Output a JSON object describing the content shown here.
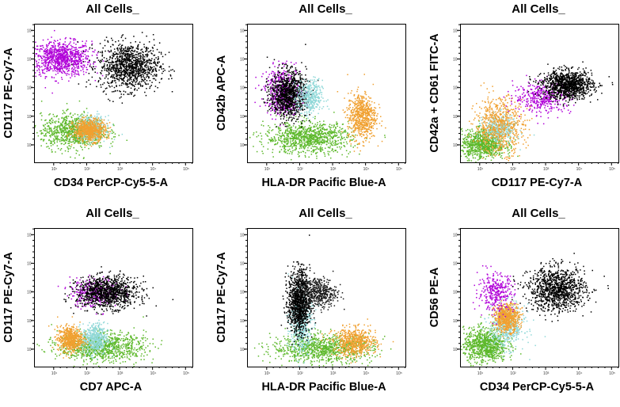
{
  "chart_data": [
    {
      "type": "scatter",
      "title": "All Cells_",
      "xlabel": "CD34 PerCP-Cy5-5-A",
      "ylabel": "CD117 PE-Cy7-A",
      "xscale": "log",
      "yscale": "log",
      "xlim": [
        10,
        100000
      ],
      "ylim": [
        10,
        100000
      ],
      "tick_labels": [
        "10¹",
        "10²",
        "10³",
        "10⁴",
        "10⁵"
      ],
      "series": [
        {
          "name": "magenta",
          "color": "#b000d8",
          "center_decades": [
            0.65,
            3.25
          ],
          "spread_decades": [
            0.85,
            0.55
          ],
          "density": 0.85
        },
        {
          "name": "black",
          "color": "#000000",
          "center_decades": [
            2.55,
            3.0
          ],
          "spread_decades": [
            0.85,
            0.75
          ],
          "density": 1.0
        },
        {
          "name": "green",
          "color": "#5cb82a",
          "center_decades": [
            1.0,
            0.9
          ],
          "spread_decades": [
            0.9,
            0.55
          ],
          "density": 0.8
        },
        {
          "name": "cyan",
          "color": "#8fd8d8",
          "center_decades": [
            1.5,
            1.0
          ],
          "spread_decades": [
            0.4,
            0.4
          ],
          "density": 0.35
        },
        {
          "name": "orange",
          "color": "#f0a030",
          "center_decades": [
            1.45,
            0.95
          ],
          "spread_decades": [
            0.45,
            0.35
          ],
          "density": 0.6
        }
      ]
    },
    {
      "type": "scatter",
      "title": "All Cells_",
      "xlabel": "HLA-DR Pacific Blue-A",
      "ylabel": "CD42b APC-A",
      "xscale": "log",
      "yscale": "log",
      "xlim": [
        10,
        100000
      ],
      "ylim": [
        10,
        100000
      ],
      "tick_labels": [
        "10¹",
        "10²",
        "10³",
        "10⁴",
        "10⁵"
      ],
      "series": [
        {
          "name": "green",
          "color": "#5cb82a",
          "center_decades": [
            1.6,
            0.7
          ],
          "spread_decades": [
            1.2,
            0.5
          ],
          "density": 0.9
        },
        {
          "name": "magenta",
          "color": "#b000d8",
          "center_decades": [
            0.9,
            2.2
          ],
          "spread_decades": [
            0.5,
            0.75
          ],
          "density": 0.45
        },
        {
          "name": "black",
          "color": "#000000",
          "center_decades": [
            1.05,
            2.1
          ],
          "spread_decades": [
            0.5,
            0.75
          ],
          "density": 0.95
        },
        {
          "name": "cyan",
          "color": "#8fd8d8",
          "center_decades": [
            1.65,
            2.0
          ],
          "spread_decades": [
            0.35,
            0.55
          ],
          "density": 0.35
        },
        {
          "name": "orange",
          "color": "#f0a030",
          "center_decades": [
            3.1,
            1.4
          ],
          "spread_decades": [
            0.4,
            0.75
          ],
          "density": 0.6
        }
      ]
    },
    {
      "type": "scatter",
      "title": "All Cells_",
      "xlabel": "CD117 PE-Cy7-A",
      "ylabel": "CD42a + CD61 FITC-A",
      "xscale": "log",
      "yscale": "log",
      "xlim": [
        10,
        100000
      ],
      "ylim": [
        10,
        100000
      ],
      "tick_labels": [
        "10¹",
        "10²",
        "10³",
        "10⁴",
        "10⁵"
      ],
      "series": [
        {
          "name": "green",
          "color": "#5cb82a",
          "center_decades": [
            0.55,
            0.5
          ],
          "spread_decades": [
            0.6,
            0.45
          ],
          "density": 0.75
        },
        {
          "name": "cyan",
          "color": "#8fd8d8",
          "center_decades": [
            1.0,
            1.0
          ],
          "spread_decades": [
            0.45,
            0.45
          ],
          "density": 0.35
        },
        {
          "name": "orange",
          "color": "#f0a030",
          "center_decades": [
            1.0,
            1.1
          ],
          "spread_decades": [
            0.7,
            0.9
          ],
          "density": 0.6
        },
        {
          "name": "magenta",
          "color": "#b000d8",
          "center_decades": [
            2.2,
            2.0
          ],
          "spread_decades": [
            0.8,
            0.5
          ],
          "density": 0.35
        },
        {
          "name": "black",
          "color": "#000000",
          "center_decades": [
            2.9,
            2.4
          ],
          "spread_decades": [
            0.7,
            0.45
          ],
          "density": 1.0
        }
      ]
    },
    {
      "type": "scatter",
      "title": "All Cells_",
      "xlabel": "CD7 APC-A",
      "ylabel": "CD117 PE-Cy7-A",
      "xscale": "log",
      "yscale": "log",
      "xlim": [
        10,
        100000
      ],
      "ylim": [
        10,
        100000
      ],
      "tick_labels": [
        "10¹",
        "10²",
        "10³",
        "10⁴",
        "10⁵"
      ],
      "series": [
        {
          "name": "green",
          "color": "#5cb82a",
          "center_decades": [
            1.8,
            0.55
          ],
          "spread_decades": [
            1.2,
            0.45
          ],
          "density": 0.85
        },
        {
          "name": "cyan",
          "color": "#8fd8d8",
          "center_decades": [
            1.6,
            0.8
          ],
          "spread_decades": [
            0.35,
            0.5
          ],
          "density": 0.4
        },
        {
          "name": "orange",
          "color": "#f0a030",
          "center_decades": [
            0.9,
            0.8
          ],
          "spread_decades": [
            0.35,
            0.4
          ],
          "density": 0.55
        },
        {
          "name": "magenta",
          "color": "#b000d8",
          "center_decades": [
            1.6,
            2.3
          ],
          "spread_decades": [
            0.7,
            0.45
          ],
          "density": 0.3
        },
        {
          "name": "black",
          "color": "#000000",
          "center_decades": [
            1.95,
            2.3
          ],
          "spread_decades": [
            0.85,
            0.5
          ],
          "density": 1.0
        }
      ]
    },
    {
      "type": "scatter",
      "title": "All Cells_",
      "xlabel": "HLA-DR Pacific Blue-A",
      "ylabel": "CD117 PE-Cy7-A",
      "xscale": "log",
      "yscale": "log",
      "xlim": [
        10,
        100000
      ],
      "ylim": [
        10,
        100000
      ],
      "tick_labels": [
        "10¹",
        "10²",
        "10³",
        "10⁴",
        "10⁵"
      ],
      "series": [
        {
          "name": "green",
          "color": "#5cb82a",
          "center_decades": [
            2.0,
            0.5
          ],
          "spread_decades": [
            1.4,
            0.45
          ],
          "density": 0.85
        },
        {
          "name": "orange",
          "color": "#f0a030",
          "center_decades": [
            2.9,
            0.7
          ],
          "spread_decades": [
            0.6,
            0.45
          ],
          "density": 0.55
        },
        {
          "name": "cyan",
          "color": "#8fd8d8",
          "center_decades": [
            1.4,
            1.3
          ],
          "spread_decades": [
            0.3,
            1.0
          ],
          "density": 0.4
        },
        {
          "name": "black",
          "color": "#000000",
          "center_decades": [
            1.35,
            2.0
          ],
          "spread_decades": [
            0.3,
            1.0
          ],
          "density": 1.0
        },
        {
          "name": "blackspread",
          "color": "#1a1a1a",
          "center_decades": [
            1.9,
            2.3
          ],
          "spread_decades": [
            0.5,
            0.5
          ],
          "density": 0.4
        }
      ]
    },
    {
      "type": "scatter",
      "title": "All Cells_",
      "xlabel": "CD34 PerCP-Cy5-5-A",
      "ylabel": "CD56 PE-A",
      "xscale": "log",
      "yscale": "log",
      "xlim": [
        10,
        100000
      ],
      "ylim": [
        10,
        100000
      ],
      "tick_labels": [
        "10¹",
        "10²",
        "10³",
        "10⁴",
        "10⁵"
      ],
      "series": [
        {
          "name": "green",
          "color": "#5cb82a",
          "center_decades": [
            0.6,
            0.6
          ],
          "spread_decades": [
            0.6,
            0.55
          ],
          "density": 0.8
        },
        {
          "name": "cyan",
          "color": "#8fd8d8",
          "center_decades": [
            1.2,
            1.2
          ],
          "spread_decades": [
            0.5,
            0.7
          ],
          "density": 0.4
        },
        {
          "name": "orange",
          "color": "#f0a030",
          "center_decades": [
            1.2,
            1.5
          ],
          "spread_decades": [
            0.35,
            0.45
          ],
          "density": 0.6
        },
        {
          "name": "magenta",
          "color": "#b000d8",
          "center_decades": [
            0.9,
            2.3
          ],
          "spread_decades": [
            0.5,
            0.6
          ],
          "density": 0.3
        },
        {
          "name": "black",
          "color": "#000000",
          "center_decades": [
            2.6,
            2.4
          ],
          "spread_decades": [
            0.8,
            0.7
          ],
          "density": 1.0
        }
      ]
    }
  ]
}
